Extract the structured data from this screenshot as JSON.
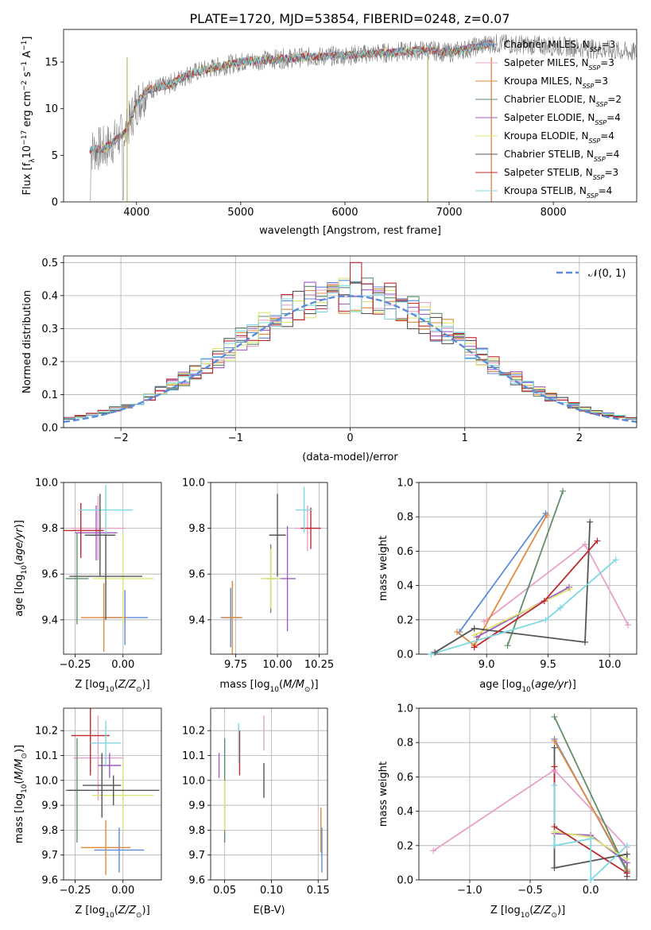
{
  "figure": {
    "title": "PLATE=1720, MJD=53854, FIBERID=0248, z=0.07"
  },
  "legend_entries": [
    {
      "base": "Chabrier MILES, N",
      "sub": "SSP",
      "tail": "=3",
      "color": "#5b8bd9"
    },
    {
      "base": "Salpeter MILES, N",
      "sub": "SSP",
      "tail": "=3",
      "color": "#e8a0c8"
    },
    {
      "base": "Kroupa MILES, N",
      "sub": "SSP",
      "tail": "=3",
      "color": "#e08a3a"
    },
    {
      "base": "Chabrier ELODIE, N",
      "sub": "SSP",
      "tail": "=2",
      "color": "#5f8f6a"
    },
    {
      "base": "Salpeter ELODIE, N",
      "sub": "SSP",
      "tail": "=4",
      "color": "#a05cc8"
    },
    {
      "base": "Kroupa ELODIE, N",
      "sub": "SSP",
      "tail": "=4",
      "color": "#dce870"
    },
    {
      "base": "Chabrier STELIB, N",
      "sub": "SSP",
      "tail": "=4",
      "color": "#555555"
    },
    {
      "base": "Salpeter STELIB, N",
      "sub": "SSP",
      "tail": "=3",
      "color": "#c0282e"
    },
    {
      "base": "Kroupa STELIB, N",
      "sub": "SSP",
      "tail": "=4",
      "color": "#7dd8e0"
    }
  ],
  "chart_data": [
    {
      "id": "spectrum",
      "type": "line",
      "xlabel": "wavelength [Angstrom, rest frame]",
      "ylabel_parts": [
        "Flux [f",
        "λ",
        "10",
        "−17",
        " erg cm",
        "−2",
        " s",
        "−1",
        " A",
        "−1",
        "]"
      ],
      "xlim": [
        3300,
        8800
      ],
      "ylim": [
        0,
        18.5
      ],
      "xticks": [
        4000,
        5000,
        6000,
        7000,
        8000
      ],
      "yticks": [
        0,
        5,
        10,
        15
      ],
      "continuum_knots": {
        "x": [
          3550,
          3700,
          3900,
          4000,
          4100,
          4300,
          4500,
          4700,
          5000,
          5300,
          5600,
          6000,
          6400,
          6800,
          7000,
          7200,
          7400,
          7800,
          8200,
          8600,
          8800
        ],
        "y": [
          5.5,
          5.8,
          7.5,
          10.5,
          12.0,
          12.5,
          13.7,
          14.3,
          15.0,
          15.3,
          15.5,
          15.7,
          16.0,
          16.3,
          16.0,
          16.5,
          17.0,
          16.8,
          16.6,
          16.2,
          16.0
        ]
      },
      "observed_xrange": [
        3550,
        8800
      ],
      "model_xrange": [
        3550,
        7430
      ]
    },
    {
      "id": "residuals",
      "type": "area",
      "xlabel": "(data-model)/error",
      "ylabel": "Normed distribution",
      "xlim": [
        -2.5,
        2.5
      ],
      "ylim": [
        0,
        0.52
      ],
      "xticks": [
        -2,
        -1,
        0,
        1,
        2
      ],
      "yticks": [
        0.0,
        0.1,
        0.2,
        0.3,
        0.4,
        0.5
      ],
      "reference_label": "𝒩(0, 1)",
      "bin_width": 0.1,
      "outlier_bin": {
        "x": 0.05,
        "value": 0.5
      }
    },
    {
      "id": "z-age",
      "type": "scatter",
      "xlabel": "Z [log10(Z/Z⊙)]",
      "ylabel": "age [log10(age/yr)]",
      "xlim": [
        -0.31,
        0.2
      ],
      "ylim": [
        9.25,
        10.0
      ],
      "xticks": [
        -0.25,
        0.0
      ],
      "yticks": [
        9.4,
        9.6,
        9.8,
        10.0
      ],
      "points": [
        {
          "series": 0,
          "x": 0.01,
          "y": 9.41,
          "xerr": 0.12,
          "yerr": 0.12
        },
        {
          "series": 1,
          "x": -0.13,
          "y": 9.8,
          "xerr": 0.14,
          "yerr": 0.14
        },
        {
          "series": 2,
          "x": -0.1,
          "y": 9.41,
          "xerr": 0.12,
          "yerr": 0.15
        },
        {
          "series": 3,
          "x": -0.24,
          "y": 9.58,
          "xerr": 0.06,
          "yerr": 0.2
        },
        {
          "series": 4,
          "x": -0.14,
          "y": 9.78,
          "xerr": 0.11,
          "yerr": 0.12
        },
        {
          "series": 5,
          "x": 0.0,
          "y": 9.58,
          "xerr": 0.16,
          "yerr": 0.2
        },
        {
          "series": 6,
          "x": -0.09,
          "y": 9.59,
          "xerr": 0.19,
          "yerr": 0.19
        },
        {
          "series": 7,
          "x": -0.22,
          "y": 9.79,
          "xerr": 0.12,
          "yerr": 0.12
        },
        {
          "series": 8,
          "x": -0.09,
          "y": 9.88,
          "xerr": 0.14,
          "yerr": 0.11
        },
        {
          "series": 6,
          "x": -0.12,
          "y": 9.77,
          "xerr": 0.08,
          "yerr": 0.18
        }
      ]
    },
    {
      "id": "mass-age",
      "type": "scatter",
      "xlabel": "mass [log10(M/M⊙)]",
      "ylabel": "",
      "xlim": [
        9.6,
        10.3
      ],
      "ylim": [
        9.25,
        10.0
      ],
      "xticks": [
        9.75,
        10.0,
        10.25
      ],
      "yticks": [
        9.4,
        9.6,
        9.8,
        10.0
      ],
      "points": [
        {
          "series": 0,
          "x": 9.72,
          "y": 9.41,
          "xerr": 0.06,
          "yerr": 0.13
        },
        {
          "series": 1,
          "x": 10.18,
          "y": 9.8,
          "xerr": 0.08,
          "yerr": 0.1
        },
        {
          "series": 2,
          "x": 9.73,
          "y": 9.41,
          "xerr": 0.06,
          "yerr": 0.16
        },
        {
          "series": 3,
          "x": 9.96,
          "y": 9.58,
          "xerr": 0.03,
          "yerr": 0.15
        },
        {
          "series": 4,
          "x": 10.06,
          "y": 9.58,
          "xerr": 0.05,
          "yerr": 0.23
        },
        {
          "series": 5,
          "x": 9.96,
          "y": 9.58,
          "xerr": 0.06,
          "yerr": 0.13
        },
        {
          "series": 6,
          "x": 10.0,
          "y": 9.77,
          "xerr": 0.05,
          "yerr": 0.18
        },
        {
          "series": 7,
          "x": 10.2,
          "y": 9.8,
          "xerr": 0.06,
          "yerr": 0.09
        },
        {
          "series": 8,
          "x": 10.16,
          "y": 9.88,
          "xerr": 0.05,
          "yerr": 0.1
        }
      ]
    },
    {
      "id": "age-weight",
      "type": "line",
      "xlabel": "age [log10(age/yr)]",
      "ylabel": "mass weight",
      "xlim": [
        8.45,
        10.22
      ],
      "ylim": [
        0.0,
        1.0
      ],
      "xticks": [
        9.0,
        9.5,
        10.0
      ],
      "yticks": [
        0.0,
        0.2,
        0.4,
        0.6,
        0.8,
        1.0
      ],
      "series": [
        {
          "x": [
            8.78,
            9.48
          ],
          "y": [
            0.13,
            0.82
          ]
        },
        {
          "x": [
            8.98,
            9.8,
            10.15
          ],
          "y": [
            0.19,
            0.64,
            0.17
          ]
        },
        {
          "x": [
            8.76,
            8.9,
            9.49
          ],
          "y": [
            0.13,
            0.05,
            0.81
          ]
        },
        {
          "x": [
            9.17,
            9.62
          ],
          "y": [
            0.05,
            0.95
          ]
        },
        {
          "x": [
            8.92,
            9.67
          ],
          "y": [
            0.1,
            0.39
          ]
        },
        {
          "x": [
            8.9,
            9.68
          ],
          "y": [
            0.11,
            0.38
          ]
        },
        {
          "x": [
            8.58,
            8.9,
            9.8,
            9.84
          ],
          "y": [
            0.01,
            0.15,
            0.07,
            0.77
          ]
        },
        {
          "x": [
            8.9,
            9.47,
            9.9
          ],
          "y": [
            0.04,
            0.31,
            0.66
          ]
        },
        {
          "x": [
            8.55,
            9.48,
            9.6,
            10.05
          ],
          "y": [
            0.0,
            0.2,
            0.27,
            0.55
          ]
        }
      ]
    },
    {
      "id": "z-mass",
      "type": "scatter",
      "xlabel": "Z [log10(Z/Z⊙)]",
      "ylabel": "mass [log10(M/M⊙)]",
      "xlim": [
        -0.31,
        0.2
      ],
      "ylim": [
        9.6,
        10.29
      ],
      "xticks": [
        -0.25,
        0.0
      ],
      "yticks": [
        9.6,
        9.7,
        9.8,
        9.9,
        10.0,
        10.1,
        10.2
      ],
      "points": [
        {
          "series": 0,
          "x": -0.02,
          "y": 9.72,
          "xerr": 0.13,
          "yerr": 0.09
        },
        {
          "series": 1,
          "x": -0.13,
          "y": 10.09,
          "xerr": 0.13,
          "yerr": 0.17
        },
        {
          "series": 2,
          "x": -0.09,
          "y": 9.73,
          "xerr": 0.13,
          "yerr": 0.11
        },
        {
          "series": 3,
          "x": -0.24,
          "y": 9.96,
          "xerr": 0.06,
          "yerr": 0.21
        },
        {
          "series": 4,
          "x": -0.07,
          "y": 10.06,
          "xerr": 0.06,
          "yerr": 0.05
        },
        {
          "series": 5,
          "x": 0.0,
          "y": 9.94,
          "xerr": 0.16,
          "yerr": 0.14
        },
        {
          "series": 6,
          "x": -0.11,
          "y": 9.98,
          "xerr": 0.1,
          "yerr": 0.13
        },
        {
          "series": 7,
          "x": -0.17,
          "y": 10.18,
          "xerr": 0.1,
          "yerr": 0.16
        },
        {
          "series": 8,
          "x": -0.09,
          "y": 10.15,
          "xerr": 0.08,
          "yerr": 0.09
        },
        {
          "series": 6,
          "x": -0.05,
          "y": 9.96,
          "xerr": 0.24,
          "yerr": 0.06
        }
      ]
    },
    {
      "id": "ebv-mass",
      "type": "scatter",
      "xlabel": "E(B-V)",
      "ylabel": "",
      "xlim": [
        0.035,
        0.16
      ],
      "ylim": [
        9.6,
        10.29
      ],
      "xticks": [
        0.05,
        0.1,
        0.15
      ],
      "yticks": [
        9.6,
        9.7,
        9.8,
        9.9,
        10.0,
        10.1,
        10.2
      ],
      "points": [
        {
          "series": 0,
          "x": 0.154,
          "y": 9.72,
          "yerr": 0.09
        },
        {
          "series": 1,
          "x": 0.092,
          "y": 10.19,
          "yerr": 0.07
        },
        {
          "series": 2,
          "x": 0.153,
          "y": 9.8,
          "yerr": 0.09
        },
        {
          "series": 3,
          "x": 0.05,
          "y": 9.96,
          "yerr": 0.21
        },
        {
          "series": 4,
          "x": 0.044,
          "y": 10.06,
          "yerr": 0.05
        },
        {
          "series": 5,
          "x": 0.05,
          "y": 9.9,
          "yerr": 0.1
        },
        {
          "series": 6,
          "x": 0.092,
          "y": 10.0,
          "yerr": 0.07
        },
        {
          "series": 7,
          "x": 0.066,
          "y": 10.11,
          "yerr": 0.09
        },
        {
          "series": 8,
          "x": 0.065,
          "y": 10.15,
          "yerr": 0.08
        }
      ]
    },
    {
      "id": "z-weight",
      "type": "line",
      "xlabel": "Z [log10(Z/Z⊙)]",
      "ylabel": "mass weight",
      "xlim": [
        -1.42,
        0.38
      ],
      "ylim": [
        0.0,
        1.0
      ],
      "xticks": [
        -1.0,
        -0.5,
        0.0
      ],
      "yticks": [
        0.0,
        0.2,
        0.4,
        0.6,
        0.8,
        1.0
      ],
      "series": [
        {
          "x": [
            -0.3,
            0.3
          ],
          "y": [
            0.82,
            0.05
          ]
        },
        {
          "x": [
            -1.3,
            -0.3,
            0.3
          ],
          "y": [
            0.17,
            0.64,
            0.19
          ]
        },
        {
          "x": [
            -0.3,
            0.3
          ],
          "y": [
            0.81,
            0.06
          ]
        },
        {
          "x": [
            -0.3,
            0.3
          ],
          "y": [
            0.95,
            0.05
          ]
        },
        {
          "x": [
            -0.3,
            0.0,
            0.3
          ],
          "y": [
            0.27,
            0.26,
            0.1
          ]
        },
        {
          "x": [
            -0.3,
            0.0,
            0.3
          ],
          "y": [
            0.28,
            0.25,
            0.12
          ]
        },
        {
          "x": [
            -0.3,
            -0.3,
            0.3,
            0.3
          ],
          "y": [
            0.77,
            0.07,
            0.15,
            0.02
          ]
        },
        {
          "x": [
            -0.3,
            -0.3,
            0.3
          ],
          "y": [
            0.66,
            0.31,
            0.04
          ]
        },
        {
          "x": [
            -0.3,
            -0.3,
            0.0,
            0.0,
            0.3
          ],
          "y": [
            0.55,
            0.2,
            0.24,
            0.0,
            0.2
          ]
        }
      ]
    }
  ]
}
